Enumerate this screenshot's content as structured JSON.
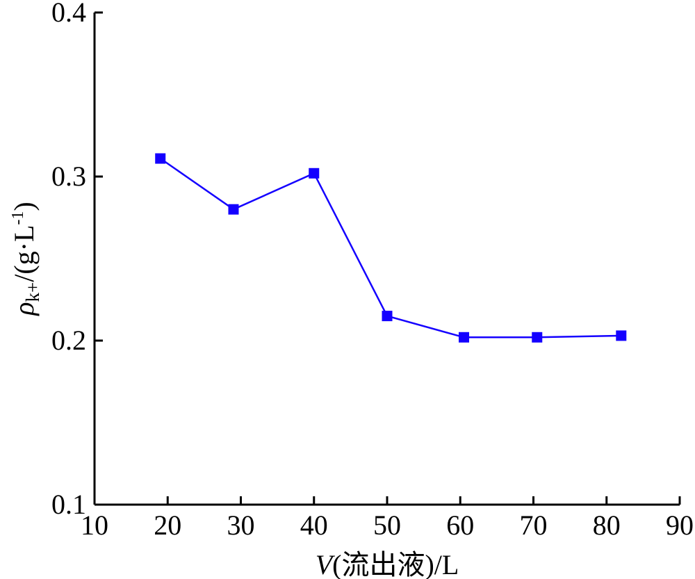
{
  "chart_data": {
    "type": "line",
    "title": "",
    "xlabel": "V(流出液)/L",
    "xlabel_parts": {
      "var": "V",
      "rest": "(流出液)/L"
    },
    "ylabel_parts": {
      "rho": "ρ",
      "sub": "k+",
      "rest": "/(g·L",
      "sup": "-1",
      "close": ")"
    },
    "xlim": [
      10,
      90
    ],
    "ylim": [
      0.1,
      0.4
    ],
    "xticks": [
      10,
      20,
      30,
      40,
      50,
      60,
      70,
      80,
      90
    ],
    "yticks": [
      0.1,
      0.2,
      0.3,
      0.4
    ],
    "ytick_labels": [
      "0.1",
      "0.2",
      "0.3",
      "0.4"
    ],
    "grid": false,
    "legend": "none",
    "series": [
      {
        "color": "#1400ff",
        "marker": "square",
        "x": [
          19,
          29,
          40,
          50,
          60.5,
          70.5,
          82
        ],
        "y": [
          0.311,
          0.28,
          0.302,
          0.215,
          0.202,
          0.202,
          0.203
        ]
      }
    ]
  }
}
